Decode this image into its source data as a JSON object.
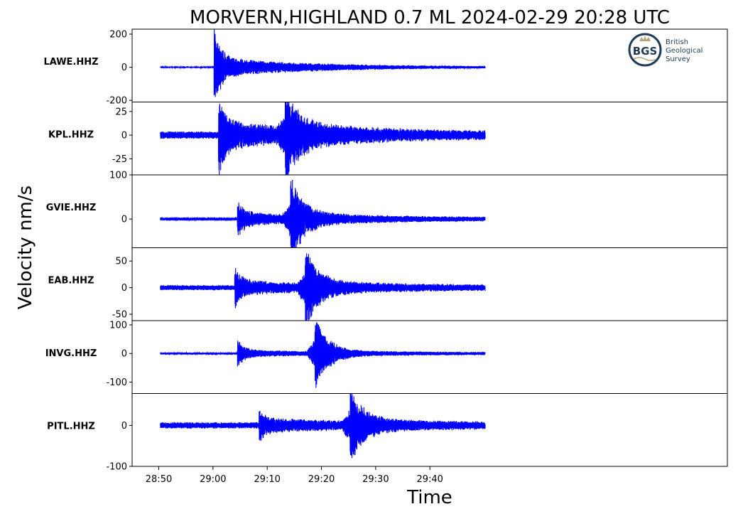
{
  "chart_data": {
    "type": "line",
    "title": "MORVERN,HIGHLAND 0.7 ML   2024-02-29 20:28 UTC",
    "xlabel": "Time",
    "ylabel": "Velocity nm/s",
    "x_ticks": [
      "28:50",
      "29:00",
      "29:10",
      "29:20",
      "29:30",
      "29:40"
    ],
    "x_range_seconds": [
      0,
      60
    ],
    "line_color": "#0000ff",
    "grid": false,
    "legend": "none",
    "panels": [
      {
        "station": "LAWE.HHZ",
        "ylim": [
          -210,
          230
        ],
        "yticks": [
          200,
          0,
          -200
        ],
        "ytick_labels": [
          "200",
          "0",
          "-200"
        ],
        "arrival_seconds": 10.2,
        "peak": 220,
        "noise": 4,
        "coda": 60,
        "pre_noise_extra": 12
      },
      {
        "station": "KPL.HHZ",
        "ylim": [
          -42,
          35
        ],
        "yticks": [
          25,
          0,
          -25
        ],
        "ytick_labels": [
          "25",
          "0",
          "-25"
        ],
        "arrival_seconds": 11.0,
        "peak": 33,
        "noise": 4,
        "coda": 12,
        "second_arrival_seconds": 23.3,
        "second_peak": 38
      },
      {
        "station": "GVIE.HHZ",
        "ylim": [
          -65,
          100
        ],
        "yticks": [
          100,
          0
        ],
        "ytick_labels": [
          "100",
          "0"
        ],
        "arrival_seconds": 14.5,
        "peak": 35,
        "noise": 4,
        "coda": 12,
        "second_arrival_seconds": 24.3,
        "second_peak": 92
      },
      {
        "station": "EAB.HHZ",
        "ylim": [
          -62,
          75
        ],
        "yticks": [
          50,
          0,
          -50
        ],
        "ytick_labels": [
          "50",
          "0",
          "-50"
        ],
        "arrival_seconds": 14.0,
        "peak": 28,
        "noise": 5,
        "coda": 10,
        "second_arrival_seconds": 27.0,
        "second_peak": 70
      },
      {
        "station": "INVG.HHZ",
        "ylim": [
          -140,
          115
        ],
        "yticks": [
          100,
          0,
          -100
        ],
        "ytick_labels": [
          "100",
          "0",
          "-100"
        ],
        "arrival_seconds": 14.5,
        "peak": 40,
        "noise": 4,
        "coda": 10,
        "second_arrival_seconds": 28.8,
        "second_peak": 130
      },
      {
        "station": "PITL.HHZ",
        "ylim": [
          -100,
          78
        ],
        "yticks": [
          0,
          -100
        ],
        "ytick_labels": [
          "0",
          "-100"
        ],
        "arrival_seconds": 18.5,
        "peak": 25,
        "noise": 8,
        "coda": 12,
        "second_arrival_seconds": 35.3,
        "second_peak": 90
      }
    ]
  },
  "logo": {
    "abbr": "BGS",
    "line1": "British",
    "line2": "Geological",
    "line3": "Survey",
    "ring_color": "#1f3b57",
    "accent_color": "#b8a27a"
  }
}
